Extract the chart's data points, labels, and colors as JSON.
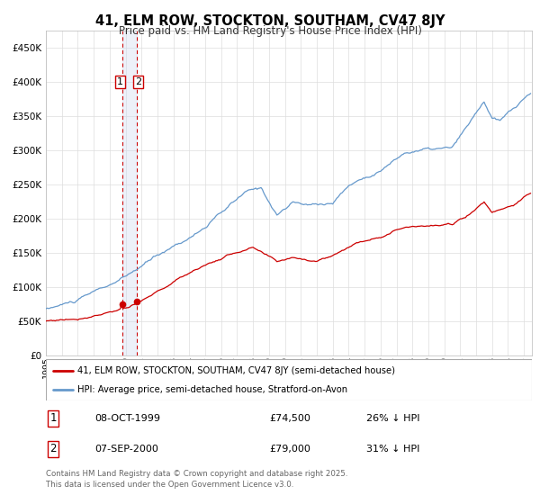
{
  "title": "41, ELM ROW, STOCKTON, SOUTHAM, CV47 8JY",
  "subtitle": "Price paid vs. HM Land Registry's House Price Index (HPI)",
  "legend_label_red": "41, ELM ROW, STOCKTON, SOUTHAM, CV47 8JY (semi-detached house)",
  "legend_label_blue": "HPI: Average price, semi-detached house, Stratford-on-Avon",
  "transaction1_date": "08-OCT-1999",
  "transaction1_price": "£74,500",
  "transaction1_hpi": "26% ↓ HPI",
  "transaction1_x": 1999.78,
  "transaction2_date": "07-SEP-2000",
  "transaction2_price": "£79,000",
  "transaction2_hpi": "31% ↓ HPI",
  "transaction2_x": 2000.69,
  "footer": "Contains HM Land Registry data © Crown copyright and database right 2025.\nThis data is licensed under the Open Government Licence v3.0.",
  "ylim": [
    0,
    475000
  ],
  "xlim_start": 1995.0,
  "xlim_end": 2025.5,
  "color_red": "#cc0000",
  "color_blue": "#6699cc",
  "color_vline": "#cc0000",
  "color_shading": "#ccd8f0",
  "background_color": "#ffffff",
  "grid_color": "#dddddd",
  "t1_y": 74500,
  "t2_y": 79000
}
